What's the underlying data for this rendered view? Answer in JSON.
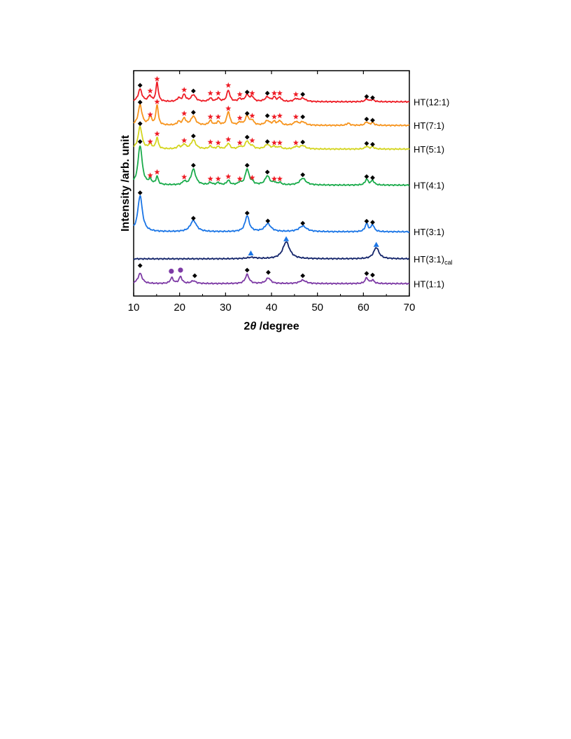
{
  "chart_data": {
    "type": "line",
    "title": "",
    "xlabel": "2θ /degree",
    "ylabel": "Intensity /arb. unit",
    "xlim": [
      10,
      70
    ],
    "xticks": [
      10,
      20,
      30,
      40,
      50,
      60,
      70
    ],
    "ylim": [
      0,
      1
    ],
    "yticks": [],
    "grid": false,
    "legend": "labels right of each curve",
    "marker_symbols": {
      "diamond": "◆",
      "star": "★",
      "triangle": "▲",
      "circle": "●"
    },
    "series": [
      {
        "name": "HT(12:1)",
        "label_main": "HT(12:1)",
        "label_sub": "",
        "color": "#ee1c25",
        "baseline": 0.862,
        "peaks": [
          {
            "x": 11.4,
            "h": 0.055,
            "w": 0.5
          },
          {
            "x": 13.5,
            "h": 0.025,
            "w": 0.4
          },
          {
            "x": 15.1,
            "h": 0.085,
            "w": 0.3
          },
          {
            "x": 19.8,
            "h": 0.015,
            "w": 0.4
          },
          {
            "x": 21.0,
            "h": 0.03,
            "w": 0.4
          },
          {
            "x": 23.0,
            "h": 0.03,
            "w": 0.6
          },
          {
            "x": 26.7,
            "h": 0.015,
            "w": 0.4
          },
          {
            "x": 28.4,
            "h": 0.015,
            "w": 0.4
          },
          {
            "x": 30.6,
            "h": 0.05,
            "w": 0.4
          },
          {
            "x": 33.1,
            "h": 0.012,
            "w": 0.4
          },
          {
            "x": 34.7,
            "h": 0.03,
            "w": 0.5
          },
          {
            "x": 35.8,
            "h": 0.02,
            "w": 0.4
          },
          {
            "x": 39.1,
            "h": 0.02,
            "w": 0.6
          },
          {
            "x": 40.6,
            "h": 0.018,
            "w": 0.4
          },
          {
            "x": 41.8,
            "h": 0.018,
            "w": 0.4
          },
          {
            "x": 45.3,
            "h": 0.012,
            "w": 0.5
          },
          {
            "x": 46.8,
            "h": 0.015,
            "w": 0.7
          },
          {
            "x": 60.7,
            "h": 0.012,
            "w": 0.4
          },
          {
            "x": 62.0,
            "h": 0.01,
            "w": 0.4
          }
        ],
        "markers": [
          {
            "x": 11.4,
            "y": 0.935,
            "type": "diamond"
          },
          {
            "x": 13.6,
            "y": 0.91,
            "type": "star"
          },
          {
            "x": 15.1,
            "y": 0.963,
            "type": "star"
          },
          {
            "x": 21.0,
            "y": 0.915,
            "type": "star"
          },
          {
            "x": 23.0,
            "y": 0.91,
            "type": "diamond"
          },
          {
            "x": 26.7,
            "y": 0.9,
            "type": "star"
          },
          {
            "x": 28.4,
            "y": 0.9,
            "type": "star"
          },
          {
            "x": 30.6,
            "y": 0.935,
            "type": "star"
          },
          {
            "x": 33.1,
            "y": 0.895,
            "type": "star"
          },
          {
            "x": 34.7,
            "y": 0.905,
            "type": "diamond"
          },
          {
            "x": 35.8,
            "y": 0.9,
            "type": "star"
          },
          {
            "x": 39.1,
            "y": 0.9,
            "type": "diamond"
          },
          {
            "x": 40.6,
            "y": 0.9,
            "type": "star"
          },
          {
            "x": 41.8,
            "y": 0.9,
            "type": "star"
          },
          {
            "x": 45.3,
            "y": 0.895,
            "type": "star"
          },
          {
            "x": 46.8,
            "y": 0.895,
            "type": "diamond"
          },
          {
            "x": 60.7,
            "y": 0.885,
            "type": "diamond"
          },
          {
            "x": 62.0,
            "y": 0.88,
            "type": "diamond"
          }
        ]
      },
      {
        "name": "HT(7:1)",
        "label_main": "HT(7:1)",
        "label_sub": "",
        "color": "#f7941d",
        "baseline": 0.757,
        "peaks": [
          {
            "x": 11.4,
            "h": 0.09,
            "w": 0.5
          },
          {
            "x": 13.6,
            "h": 0.035,
            "w": 0.4
          },
          {
            "x": 15.1,
            "h": 0.09,
            "w": 0.3
          },
          {
            "x": 19.8,
            "h": 0.015,
            "w": 0.4
          },
          {
            "x": 21.0,
            "h": 0.03,
            "w": 0.4
          },
          {
            "x": 23.0,
            "h": 0.04,
            "w": 0.6
          },
          {
            "x": 26.7,
            "h": 0.02,
            "w": 0.4
          },
          {
            "x": 28.4,
            "h": 0.015,
            "w": 0.4
          },
          {
            "x": 30.6,
            "h": 0.06,
            "w": 0.4
          },
          {
            "x": 33.1,
            "h": 0.012,
            "w": 0.4
          },
          {
            "x": 34.7,
            "h": 0.04,
            "w": 0.5
          },
          {
            "x": 35.8,
            "h": 0.02,
            "w": 0.4
          },
          {
            "x": 39.1,
            "h": 0.02,
            "w": 0.6
          },
          {
            "x": 40.6,
            "h": 0.015,
            "w": 0.4
          },
          {
            "x": 41.8,
            "h": 0.02,
            "w": 0.4
          },
          {
            "x": 45.3,
            "h": 0.015,
            "w": 0.5
          },
          {
            "x": 46.8,
            "h": 0.015,
            "w": 0.7
          },
          {
            "x": 56.7,
            "h": 0.01,
            "w": 0.4
          },
          {
            "x": 60.7,
            "h": 0.015,
            "w": 0.4
          },
          {
            "x": 62.0,
            "h": 0.012,
            "w": 0.4
          }
        ],
        "markers": [
          {
            "x": 11.4,
            "y": 0.86,
            "type": "diamond"
          },
          {
            "x": 13.6,
            "y": 0.805,
            "type": "star"
          },
          {
            "x": 15.1,
            "y": 0.862,
            "type": "star"
          },
          {
            "x": 21.0,
            "y": 0.81,
            "type": "star"
          },
          {
            "x": 23.0,
            "y": 0.815,
            "type": "diamond"
          },
          {
            "x": 26.7,
            "y": 0.795,
            "type": "star"
          },
          {
            "x": 28.4,
            "y": 0.795,
            "type": "star"
          },
          {
            "x": 30.6,
            "y": 0.832,
            "type": "star"
          },
          {
            "x": 33.1,
            "y": 0.79,
            "type": "star"
          },
          {
            "x": 34.7,
            "y": 0.81,
            "type": "diamond"
          },
          {
            "x": 35.8,
            "y": 0.8,
            "type": "star"
          },
          {
            "x": 39.1,
            "y": 0.8,
            "type": "diamond"
          },
          {
            "x": 40.6,
            "y": 0.795,
            "type": "star"
          },
          {
            "x": 41.8,
            "y": 0.8,
            "type": "star"
          },
          {
            "x": 45.3,
            "y": 0.795,
            "type": "star"
          },
          {
            "x": 46.8,
            "y": 0.795,
            "type": "diamond"
          },
          {
            "x": 60.7,
            "y": 0.785,
            "type": "diamond"
          },
          {
            "x": 62.0,
            "y": 0.78,
            "type": "diamond"
          }
        ]
      },
      {
        "name": "HT(5:1)",
        "label_main": "HT(5:1)",
        "label_sub": "",
        "color": "#d4d51f",
        "baseline": 0.652,
        "peaks": [
          {
            "x": 11.4,
            "h": 0.1,
            "w": 0.5
          },
          {
            "x": 13.6,
            "h": 0.02,
            "w": 0.4
          },
          {
            "x": 15.1,
            "h": 0.05,
            "w": 0.3
          },
          {
            "x": 19.8,
            "h": 0.012,
            "w": 0.4
          },
          {
            "x": 21.0,
            "h": 0.02,
            "w": 0.4
          },
          {
            "x": 23.0,
            "h": 0.04,
            "w": 0.6
          },
          {
            "x": 26.7,
            "h": 0.012,
            "w": 0.4
          },
          {
            "x": 28.4,
            "h": 0.01,
            "w": 0.4
          },
          {
            "x": 30.6,
            "h": 0.025,
            "w": 0.4
          },
          {
            "x": 33.1,
            "h": 0.01,
            "w": 0.4
          },
          {
            "x": 34.7,
            "h": 0.035,
            "w": 0.5
          },
          {
            "x": 35.8,
            "h": 0.012,
            "w": 0.4
          },
          {
            "x": 39.1,
            "h": 0.02,
            "w": 0.6
          },
          {
            "x": 40.6,
            "h": 0.01,
            "w": 0.4
          },
          {
            "x": 41.8,
            "h": 0.01,
            "w": 0.4
          },
          {
            "x": 45.3,
            "h": 0.01,
            "w": 0.5
          },
          {
            "x": 46.8,
            "h": 0.015,
            "w": 0.7
          },
          {
            "x": 60.7,
            "h": 0.012,
            "w": 0.4
          },
          {
            "x": 62.0,
            "h": 0.01,
            "w": 0.4
          }
        ],
        "markers": [
          {
            "x": 11.4,
            "y": 0.765,
            "type": "diamond"
          },
          {
            "x": 13.6,
            "y": 0.685,
            "type": "star"
          },
          {
            "x": 15.1,
            "y": 0.72,
            "type": "star"
          },
          {
            "x": 21.0,
            "y": 0.69,
            "type": "star"
          },
          {
            "x": 23.0,
            "y": 0.71,
            "type": "diamond"
          },
          {
            "x": 26.7,
            "y": 0.683,
            "type": "star"
          },
          {
            "x": 28.4,
            "y": 0.68,
            "type": "star"
          },
          {
            "x": 30.6,
            "y": 0.695,
            "type": "star"
          },
          {
            "x": 33.1,
            "y": 0.68,
            "type": "star"
          },
          {
            "x": 34.7,
            "y": 0.705,
            "type": "diamond"
          },
          {
            "x": 35.8,
            "y": 0.69,
            "type": "star"
          },
          {
            "x": 39.1,
            "y": 0.685,
            "type": "diamond"
          },
          {
            "x": 40.6,
            "y": 0.68,
            "type": "star"
          },
          {
            "x": 41.8,
            "y": 0.68,
            "type": "star"
          },
          {
            "x": 45.3,
            "y": 0.68,
            "type": "star"
          },
          {
            "x": 46.8,
            "y": 0.683,
            "type": "diamond"
          },
          {
            "x": 60.7,
            "y": 0.677,
            "type": "diamond"
          },
          {
            "x": 62.0,
            "y": 0.673,
            "type": "diamond"
          }
        ]
      },
      {
        "name": "HT(4:1)",
        "label_main": "HT(4:1)",
        "label_sub": "",
        "color": "#1aab4b",
        "baseline": 0.492,
        "peaks": [
          {
            "x": 11.4,
            "h": 0.175,
            "w": 0.55
          },
          {
            "x": 13.6,
            "h": 0.02,
            "w": 0.4
          },
          {
            "x": 15.1,
            "h": 0.035,
            "w": 0.3
          },
          {
            "x": 21.0,
            "h": 0.015,
            "w": 0.4
          },
          {
            "x": 23.0,
            "h": 0.07,
            "w": 0.6
          },
          {
            "x": 26.7,
            "h": 0.01,
            "w": 0.4
          },
          {
            "x": 28.4,
            "h": 0.01,
            "w": 0.4
          },
          {
            "x": 30.6,
            "h": 0.02,
            "w": 0.4
          },
          {
            "x": 33.1,
            "h": 0.01,
            "w": 0.4
          },
          {
            "x": 34.7,
            "h": 0.07,
            "w": 0.5
          },
          {
            "x": 35.8,
            "h": 0.01,
            "w": 0.4
          },
          {
            "x": 39.1,
            "h": 0.04,
            "w": 0.6
          },
          {
            "x": 40.6,
            "h": 0.01,
            "w": 0.4
          },
          {
            "x": 41.8,
            "h": 0.01,
            "w": 0.4
          },
          {
            "x": 46.8,
            "h": 0.03,
            "w": 0.8
          },
          {
            "x": 60.7,
            "h": 0.025,
            "w": 0.4
          },
          {
            "x": 62.0,
            "h": 0.02,
            "w": 0.4
          }
        ],
        "markers": [
          {
            "x": 11.4,
            "y": 0.685,
            "type": "diamond"
          },
          {
            "x": 13.6,
            "y": 0.535,
            "type": "star"
          },
          {
            "x": 15.1,
            "y": 0.55,
            "type": "star"
          },
          {
            "x": 21.0,
            "y": 0.528,
            "type": "star"
          },
          {
            "x": 23.0,
            "y": 0.58,
            "type": "diamond"
          },
          {
            "x": 26.7,
            "y": 0.52,
            "type": "star"
          },
          {
            "x": 28.4,
            "y": 0.52,
            "type": "star"
          },
          {
            "x": 30.6,
            "y": 0.53,
            "type": "star"
          },
          {
            "x": 33.1,
            "y": 0.52,
            "type": "star"
          },
          {
            "x": 34.7,
            "y": 0.58,
            "type": "diamond"
          },
          {
            "x": 35.8,
            "y": 0.525,
            "type": "star"
          },
          {
            "x": 39.1,
            "y": 0.55,
            "type": "diamond"
          },
          {
            "x": 40.6,
            "y": 0.52,
            "type": "star"
          },
          {
            "x": 41.8,
            "y": 0.52,
            "type": "star"
          },
          {
            "x": 46.8,
            "y": 0.538,
            "type": "diamond"
          },
          {
            "x": 60.7,
            "y": 0.53,
            "type": "diamond"
          },
          {
            "x": 62.0,
            "y": 0.525,
            "type": "diamond"
          }
        ]
      },
      {
        "name": "HT(3:1)",
        "label_main": "HT(3:1)",
        "label_sub": "",
        "color": "#1a75e6",
        "baseline": 0.285,
        "peaks": [
          {
            "x": 11.4,
            "h": 0.16,
            "w": 0.6
          },
          {
            "x": 23.0,
            "h": 0.05,
            "w": 0.8
          },
          {
            "x": 34.7,
            "h": 0.07,
            "w": 0.55
          },
          {
            "x": 39.2,
            "h": 0.035,
            "w": 0.8
          },
          {
            "x": 46.8,
            "h": 0.025,
            "w": 1.0
          },
          {
            "x": 60.7,
            "h": 0.035,
            "w": 0.4
          },
          {
            "x": 62.0,
            "h": 0.03,
            "w": 0.4
          }
        ],
        "markers": [
          {
            "x": 11.4,
            "y": 0.458,
            "type": "diamond"
          },
          {
            "x": 23.0,
            "y": 0.345,
            "type": "diamond"
          },
          {
            "x": 34.7,
            "y": 0.368,
            "type": "diamond"
          },
          {
            "x": 39.2,
            "y": 0.333,
            "type": "diamond"
          },
          {
            "x": 46.8,
            "y": 0.323,
            "type": "diamond"
          },
          {
            "x": 60.7,
            "y": 0.332,
            "type": "diamond"
          },
          {
            "x": 62.0,
            "y": 0.327,
            "type": "diamond"
          }
        ]
      },
      {
        "name": "HT(3:1)cal",
        "label_main": "HT(3:1)",
        "label_sub": "cal",
        "color": "#13246a",
        "baseline": 0.165,
        "peaks": [
          {
            "x": 35.6,
            "h": 0.006,
            "w": 1.2
          },
          {
            "x": 43.2,
            "h": 0.075,
            "w": 0.9
          },
          {
            "x": 62.8,
            "h": 0.05,
            "w": 0.7
          }
        ],
        "markers": [
          {
            "x": 35.5,
            "y": 0.19,
            "type": "triangle"
          },
          {
            "x": 43.2,
            "y": 0.253,
            "type": "triangle"
          },
          {
            "x": 62.8,
            "y": 0.228,
            "type": "triangle"
          }
        ]
      },
      {
        "name": "HT(1:1)",
        "label_main": "HT(1:1)",
        "label_sub": "",
        "color": "#7d3aa5",
        "baseline": 0.055,
        "peaks": [
          {
            "x": 11.4,
            "h": 0.045,
            "w": 0.55
          },
          {
            "x": 18.3,
            "h": 0.025,
            "w": 0.4
          },
          {
            "x": 20.2,
            "h": 0.03,
            "w": 0.4
          },
          {
            "x": 23.0,
            "h": 0.012,
            "w": 0.6
          },
          {
            "x": 34.7,
            "h": 0.04,
            "w": 0.5
          },
          {
            "x": 39.3,
            "h": 0.025,
            "w": 0.6
          },
          {
            "x": 46.8,
            "h": 0.015,
            "w": 0.8
          },
          {
            "x": 60.7,
            "h": 0.025,
            "w": 0.4
          },
          {
            "x": 62.0,
            "h": 0.015,
            "w": 0.4
          }
        ],
        "markers": [
          {
            "x": 11.4,
            "y": 0.135,
            "type": "diamond"
          },
          {
            "x": 18.2,
            "y": 0.11,
            "type": "circle"
          },
          {
            "x": 20.2,
            "y": 0.115,
            "type": "circle"
          },
          {
            "x": 23.3,
            "y": 0.09,
            "type": "diamond"
          },
          {
            "x": 34.7,
            "y": 0.115,
            "type": "diamond"
          },
          {
            "x": 39.3,
            "y": 0.105,
            "type": "diamond"
          },
          {
            "x": 46.8,
            "y": 0.09,
            "type": "diamond"
          },
          {
            "x": 60.7,
            "y": 0.1,
            "type": "diamond"
          },
          {
            "x": 62.0,
            "y": 0.093,
            "type": "diamond"
          }
        ]
      }
    ]
  }
}
